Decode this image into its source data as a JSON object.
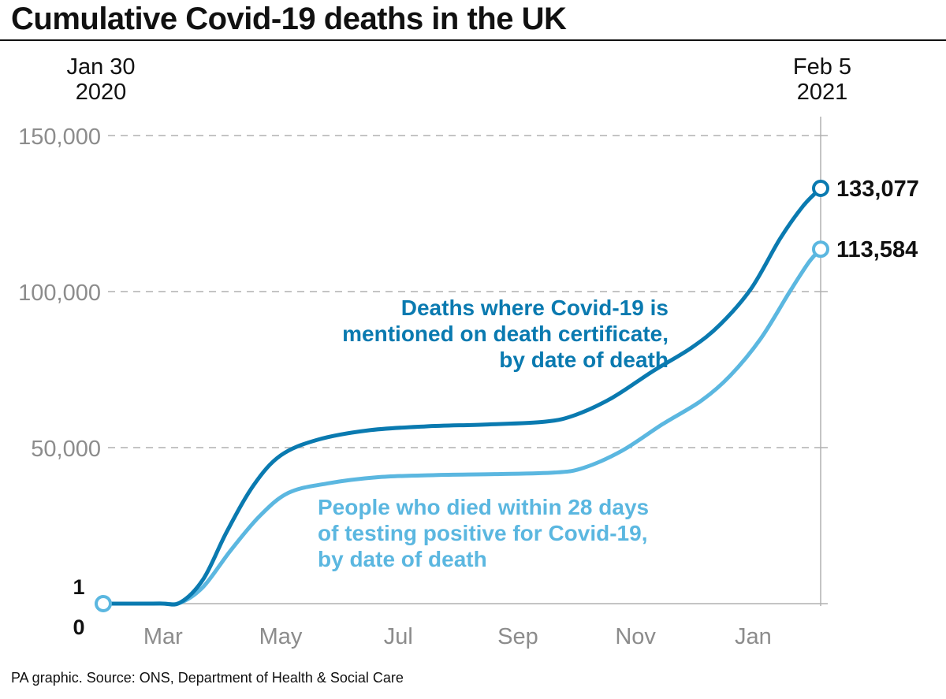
{
  "title": "Cumulative Covid-19 deaths in the UK",
  "source": "PA graphic. Source: ONS, Department of Health & Social Care",
  "colors": {
    "series_dark": "#0a7ab0",
    "series_light": "#5bb7e0",
    "axis_text": "#8c8c8c",
    "gridline": "#b0b0b0",
    "text": "#111111"
  },
  "chart_data": {
    "type": "line",
    "x_start_label": [
      "Jan 30",
      "2020"
    ],
    "x_end_label": [
      "Feb 5",
      "2021"
    ],
    "xlim": [
      "2020-01-30",
      "2021-02-05"
    ],
    "x_ticks": [
      {
        "date": "2020-03-01",
        "label": "Mar"
      },
      {
        "date": "2020-05-01",
        "label": "May"
      },
      {
        "date": "2020-07-01",
        "label": "Jul"
      },
      {
        "date": "2020-09-01",
        "label": "Sep"
      },
      {
        "date": "2020-11-01",
        "label": "Nov"
      },
      {
        "date": "2021-01-01",
        "label": "Jan"
      }
    ],
    "ylim": [
      0,
      150000
    ],
    "y_ticks": [
      {
        "value": 50000,
        "label": "50,000"
      },
      {
        "value": 100000,
        "label": "100,000"
      },
      {
        "value": 150000,
        "label": "150,000"
      }
    ],
    "start_labels": [
      {
        "value": 1,
        "label": "1"
      },
      {
        "value": 0,
        "label": "0"
      }
    ],
    "grid": true,
    "series": [
      {
        "name": [
          "Deaths where Covid-19 is",
          "mentioned on death certificate,",
          "by date of death"
        ],
        "end_label": "133,077",
        "points": [
          {
            "x": "2020-01-30",
            "y": 1
          },
          {
            "x": "2020-02-28",
            "y": 20
          },
          {
            "x": "2020-03-10",
            "y": 400
          },
          {
            "x": "2020-03-22",
            "y": 8000
          },
          {
            "x": "2020-04-03",
            "y": 23000
          },
          {
            "x": "2020-04-17",
            "y": 38000
          },
          {
            "x": "2020-05-01",
            "y": 47500
          },
          {
            "x": "2020-05-20",
            "y": 52500
          },
          {
            "x": "2020-06-15",
            "y": 55500
          },
          {
            "x": "2020-07-15",
            "y": 56800
          },
          {
            "x": "2020-08-15",
            "y": 57400
          },
          {
            "x": "2020-09-15",
            "y": 58300
          },
          {
            "x": "2020-10-01",
            "y": 60500
          },
          {
            "x": "2020-10-20",
            "y": 66000
          },
          {
            "x": "2020-11-10",
            "y": 74500
          },
          {
            "x": "2020-11-30",
            "y": 82000
          },
          {
            "x": "2020-12-15",
            "y": 89500
          },
          {
            "x": "2020-12-31",
            "y": 101000
          },
          {
            "x": "2021-01-15",
            "y": 117000
          },
          {
            "x": "2021-01-27",
            "y": 127500
          },
          {
            "x": "2021-02-05",
            "y": 133077
          }
        ]
      },
      {
        "name": [
          "People who died within 28 days",
          "of testing positive for Covid-19,",
          "by date of death"
        ],
        "end_label": "113,584",
        "points": [
          {
            "x": "2020-01-30",
            "y": 1
          },
          {
            "x": "2020-02-28",
            "y": 20
          },
          {
            "x": "2020-03-10",
            "y": 300
          },
          {
            "x": "2020-03-22",
            "y": 5500
          },
          {
            "x": "2020-04-05",
            "y": 17000
          },
          {
            "x": "2020-04-20",
            "y": 28000
          },
          {
            "x": "2020-05-05",
            "y": 35500
          },
          {
            "x": "2020-05-25",
            "y": 38500
          },
          {
            "x": "2020-06-20",
            "y": 40500
          },
          {
            "x": "2020-07-20",
            "y": 41200
          },
          {
            "x": "2020-08-20",
            "y": 41500
          },
          {
            "x": "2020-09-20",
            "y": 42000
          },
          {
            "x": "2020-10-05",
            "y": 43500
          },
          {
            "x": "2020-10-25",
            "y": 49000
          },
          {
            "x": "2020-11-15",
            "y": 57500
          },
          {
            "x": "2020-12-05",
            "y": 65000
          },
          {
            "x": "2020-12-20",
            "y": 73000
          },
          {
            "x": "2021-01-05",
            "y": 85000
          },
          {
            "x": "2021-01-20",
            "y": 100000
          },
          {
            "x": "2021-01-30",
            "y": 109500
          },
          {
            "x": "2021-02-05",
            "y": 113584
          }
        ]
      }
    ]
  }
}
